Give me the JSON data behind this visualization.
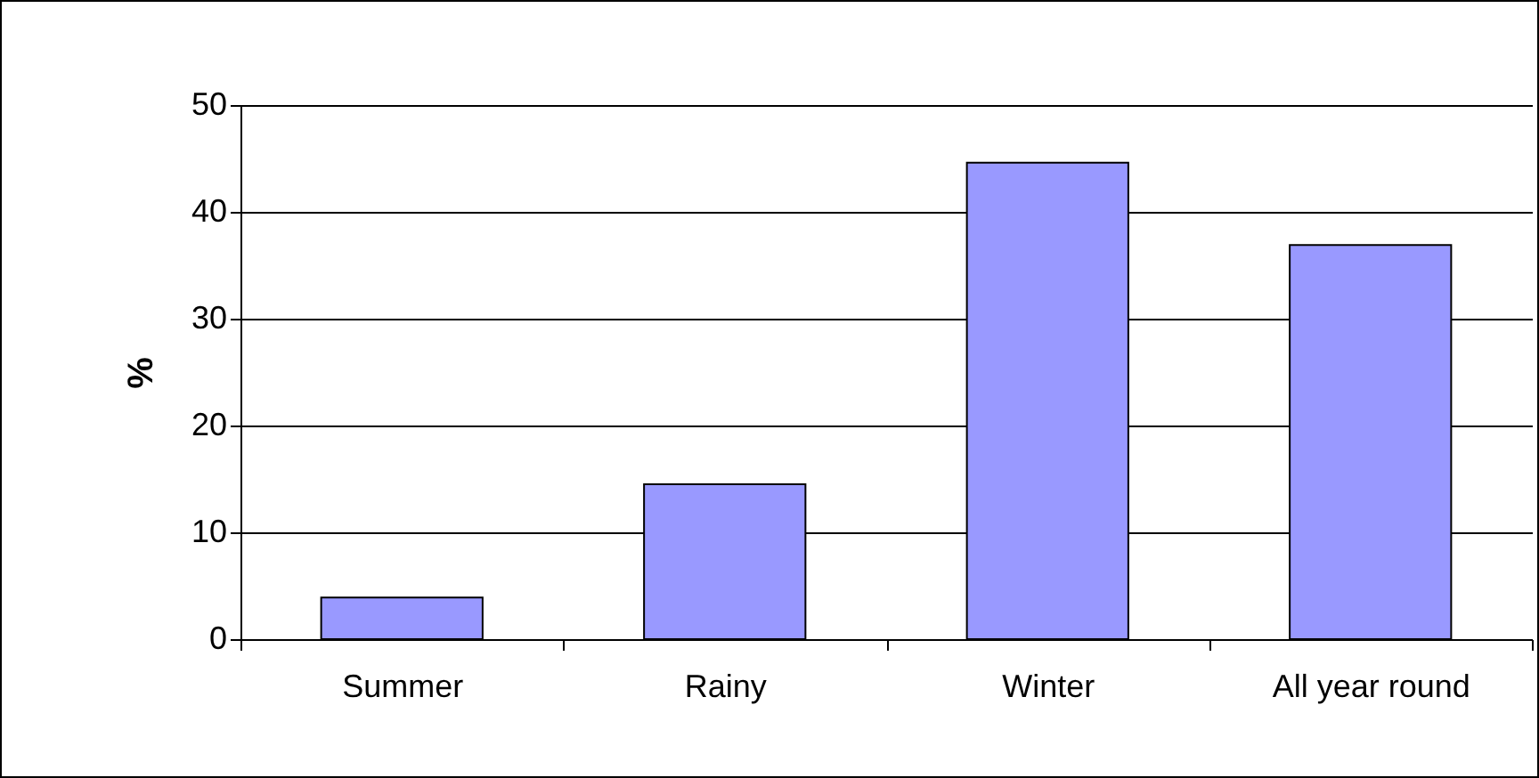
{
  "chart_data": {
    "type": "bar",
    "ylabel": "%",
    "categories": [
      "Summer",
      "Rainy",
      "Winter",
      "All year round"
    ],
    "values": [
      3.9,
      14.5,
      44.6,
      36.9
    ],
    "color": "#9999ff",
    "ylim": [
      0,
      50
    ],
    "yticks": [
      0,
      10,
      20,
      30,
      40,
      50
    ],
    "grid": "y"
  }
}
